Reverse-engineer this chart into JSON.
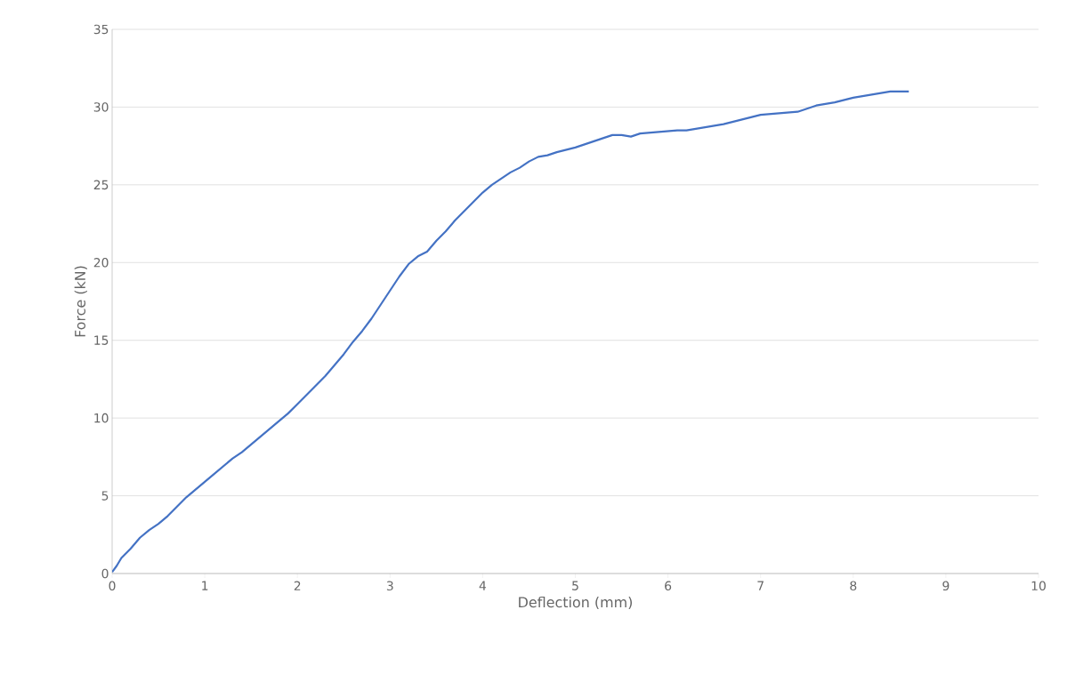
{
  "chart_data": {
    "type": "line",
    "xlabel": "Deflection (mm)",
    "ylabel": "Force (kN)",
    "xlim": [
      0,
      10
    ],
    "ylim": [
      0,
      35
    ],
    "xticks": [
      0,
      1,
      2,
      3,
      4,
      5,
      6,
      7,
      8,
      9,
      10
    ],
    "yticks": [
      0,
      5,
      10,
      15,
      20,
      25,
      30,
      35
    ],
    "grid": "y",
    "marker": "none",
    "line_style": "solid",
    "series": [
      {
        "color": "#4472c4",
        "x": [
          0,
          0.05,
          0.1,
          0.2,
          0.3,
          0.4,
          0.5,
          0.6,
          0.7,
          0.8,
          0.9,
          1.0,
          1.1,
          1.2,
          1.3,
          1.4,
          1.5,
          1.6,
          1.7,
          1.8,
          1.9,
          2.0,
          2.1,
          2.2,
          2.3,
          2.4,
          2.5,
          2.6,
          2.7,
          2.8,
          2.9,
          3.0,
          3.1,
          3.2,
          3.3,
          3.4,
          3.5,
          3.6,
          3.7,
          3.8,
          3.9,
          4.0,
          4.1,
          4.2,
          4.3,
          4.4,
          4.5,
          4.6,
          4.7,
          4.8,
          5.0,
          5.2,
          5.4,
          5.5,
          5.6,
          5.7,
          5.9,
          6.1,
          6.2,
          6.4,
          6.6,
          6.8,
          7.0,
          7.2,
          7.4,
          7.6,
          7.8,
          8.0,
          8.2,
          8.4,
          8.6
        ],
        "values": [
          0.1,
          0.5,
          1.0,
          1.6,
          2.3,
          2.8,
          3.2,
          3.7,
          4.3,
          4.9,
          5.4,
          5.9,
          6.4,
          6.9,
          7.4,
          7.8,
          8.3,
          8.8,
          9.3,
          9.8,
          10.3,
          10.9,
          11.5,
          12.1,
          12.7,
          13.4,
          14.1,
          14.9,
          15.6,
          16.4,
          17.3,
          18.2,
          19.1,
          19.9,
          20.4,
          20.7,
          21.4,
          22.0,
          22.7,
          23.3,
          23.9,
          24.5,
          25.0,
          25.4,
          25.8,
          26.1,
          26.5,
          26.8,
          26.9,
          27.1,
          27.4,
          27.8,
          28.2,
          28.2,
          28.1,
          28.3,
          28.4,
          28.5,
          28.5,
          28.7,
          28.9,
          29.2,
          29.5,
          29.6,
          29.7,
          30.1,
          30.3,
          30.6,
          30.8,
          31.0,
          31.0
        ]
      }
    ]
  }
}
